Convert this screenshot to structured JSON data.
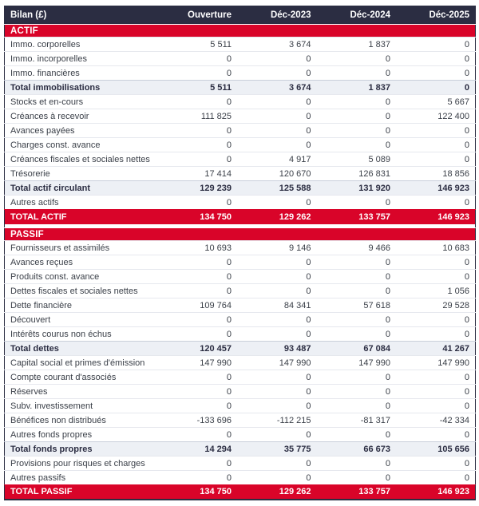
{
  "table": {
    "title_column": "Bilan (£)",
    "columns": [
      "Ouverture",
      "Déc-2023",
      "Déc-2024",
      "Déc-2025"
    ],
    "rows": [
      {
        "type": "section",
        "label": "ACTIF"
      },
      {
        "type": "data",
        "label": "Immo. corporelles",
        "values": [
          "5 511",
          "3 674",
          "1 837",
          "0"
        ]
      },
      {
        "type": "data",
        "label": "Immo. incorporelles",
        "values": [
          "0",
          "0",
          "0",
          "0"
        ]
      },
      {
        "type": "data",
        "label": "Immo. financières",
        "values": [
          "0",
          "0",
          "0",
          "0"
        ]
      },
      {
        "type": "total",
        "label": "Total immobilisations",
        "values": [
          "5 511",
          "3 674",
          "1 837",
          "0"
        ]
      },
      {
        "type": "data",
        "label": "Stocks et en-cours",
        "values": [
          "0",
          "0",
          "0",
          "5 667"
        ]
      },
      {
        "type": "data",
        "label": "Créances à recevoir",
        "values": [
          "111 825",
          "0",
          "0",
          "122 400"
        ]
      },
      {
        "type": "data",
        "label": "Avances payées",
        "values": [
          "0",
          "0",
          "0",
          "0"
        ]
      },
      {
        "type": "data",
        "label": "Charges const. avance",
        "values": [
          "0",
          "0",
          "0",
          "0"
        ]
      },
      {
        "type": "data",
        "label": "Créances fiscales et sociales nettes",
        "values": [
          "0",
          "4 917",
          "5 089",
          "0"
        ]
      },
      {
        "type": "data",
        "label": "Trésorerie",
        "values": [
          "17 414",
          "120 670",
          "126 831",
          "18 856"
        ]
      },
      {
        "type": "total",
        "label": "Total actif circulant",
        "values": [
          "129 239",
          "125 588",
          "131 920",
          "146 923"
        ]
      },
      {
        "type": "data",
        "label": "Autres actifs",
        "values": [
          "0",
          "0",
          "0",
          "0"
        ]
      },
      {
        "type": "grandtotal",
        "label": "TOTAL ACTIF",
        "values": [
          "134 750",
          "129 262",
          "133 757",
          "146 923"
        ]
      },
      {
        "type": "gap"
      },
      {
        "type": "section",
        "label": "PASSIF"
      },
      {
        "type": "data",
        "label": "Fournisseurs et assimilés",
        "values": [
          "10 693",
          "9 146",
          "9 466",
          "10 683"
        ]
      },
      {
        "type": "data",
        "label": "Avances reçues",
        "values": [
          "0",
          "0",
          "0",
          "0"
        ]
      },
      {
        "type": "data",
        "label": "Produits const. avance",
        "values": [
          "0",
          "0",
          "0",
          "0"
        ]
      },
      {
        "type": "data",
        "label": "Dettes fiscales et sociales nettes",
        "values": [
          "0",
          "0",
          "0",
          "1 056"
        ]
      },
      {
        "type": "data",
        "label": "Dette financière",
        "values": [
          "109 764",
          "84 341",
          "57 618",
          "29 528"
        ]
      },
      {
        "type": "data",
        "label": "Découvert",
        "values": [
          "0",
          "0",
          "0",
          "0"
        ]
      },
      {
        "type": "data",
        "label": "Intérêts courus non échus",
        "values": [
          "0",
          "0",
          "0",
          "0"
        ]
      },
      {
        "type": "total",
        "label": "Total dettes",
        "values": [
          "120 457",
          "93 487",
          "67 084",
          "41 267"
        ]
      },
      {
        "type": "data",
        "label": "Capital social et primes d'émission",
        "values": [
          "147 990",
          "147 990",
          "147 990",
          "147 990"
        ]
      },
      {
        "type": "data",
        "label": "Compte courant d'associés",
        "values": [
          "0",
          "0",
          "0",
          "0"
        ]
      },
      {
        "type": "data",
        "label": "Réserves",
        "values": [
          "0",
          "0",
          "0",
          "0"
        ]
      },
      {
        "type": "data",
        "label": "Subv. investissement",
        "values": [
          "0",
          "0",
          "0",
          "0"
        ]
      },
      {
        "type": "data",
        "label": "Bénéfices non distribués",
        "values": [
          "-133 696",
          "-112 215",
          "-81 317",
          "-42 334"
        ]
      },
      {
        "type": "data",
        "label": "Autres fonds propres",
        "values": [
          "0",
          "0",
          "0",
          "0"
        ]
      },
      {
        "type": "total",
        "label": "Total fonds propres",
        "values": [
          "14 294",
          "35 775",
          "66 673",
          "105 656"
        ]
      },
      {
        "type": "data",
        "label": "Provisions pour risques et charges",
        "values": [
          "0",
          "0",
          "0",
          "0"
        ]
      },
      {
        "type": "data",
        "label": "Autres passifs",
        "values": [
          "0",
          "0",
          "0",
          "0"
        ]
      },
      {
        "type": "grandtotal",
        "label": "TOTAL PASSIF",
        "values": [
          "134 750",
          "129 262",
          "133 757",
          "146 923"
        ]
      }
    ]
  },
  "colors": {
    "header_bg": "#2b2d42",
    "accent_red": "#d90429",
    "subtotal_row_bg": "#edf0f5",
    "row_border": "#e6e8ee",
    "body_text": "#3b4049"
  }
}
